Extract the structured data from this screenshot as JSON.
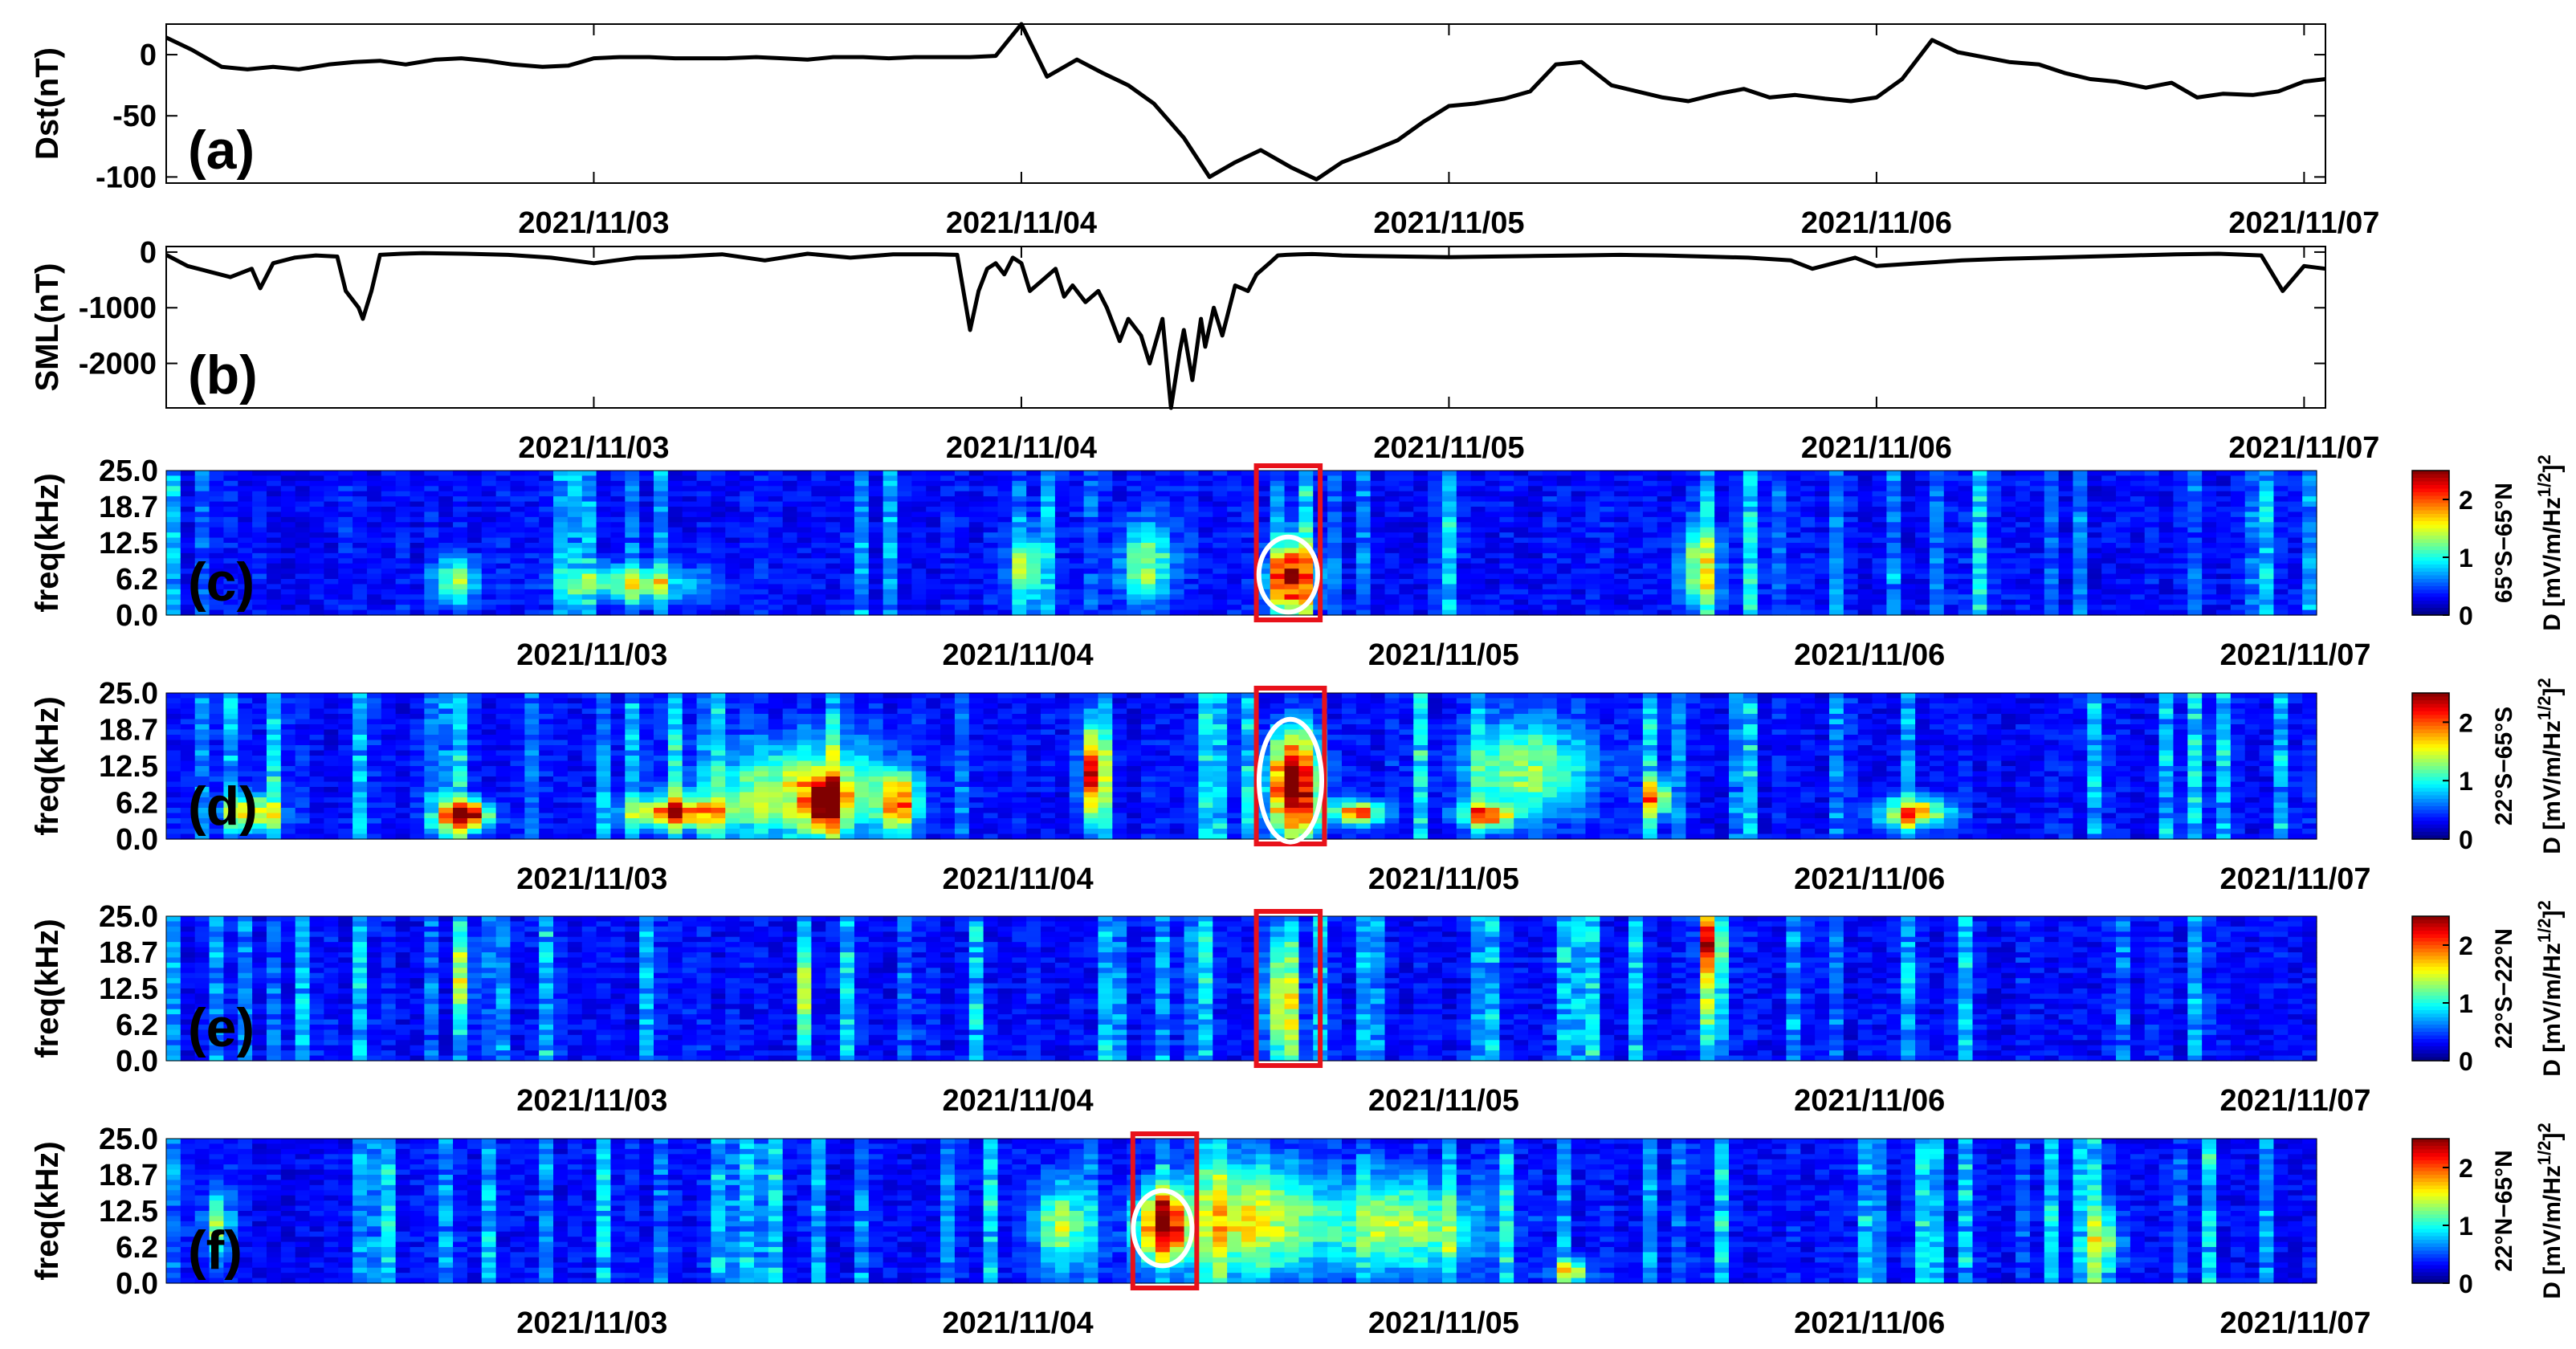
{
  "chart_data": [
    {
      "id": "a",
      "type": "line",
      "panel_label": "(a)",
      "ylabel": "Dst(nT)",
      "ylim": [
        -105,
        25
      ],
      "yticks": [
        0,
        -50,
        -100
      ],
      "ytick_labels": [
        "0",
        "-50",
        "-100"
      ],
      "xlim_days": [
        0,
        5.05
      ],
      "xticks_days": [
        1,
        2,
        3,
        4,
        5
      ],
      "xtick_labels": [
        "2021/11/03",
        "2021/11/04",
        "2021/11/05",
        "2021/11/06",
        "2021/11/07"
      ],
      "x_days": [
        0.0,
        0.06,
        0.13,
        0.19,
        0.25,
        0.31,
        0.38,
        0.44,
        0.5,
        0.56,
        0.63,
        0.69,
        0.75,
        0.81,
        0.88,
        0.94,
        1.0,
        1.06,
        1.13,
        1.19,
        1.25,
        1.31,
        1.38,
        1.44,
        1.5,
        1.56,
        1.63,
        1.69,
        1.75,
        1.81,
        1.88,
        1.94,
        2.0,
        2.06,
        2.13,
        2.19,
        2.25,
        2.31,
        2.38,
        2.44,
        2.5,
        2.56,
        2.63,
        2.69,
        2.75,
        2.81,
        2.88,
        2.94,
        3.0,
        3.06,
        3.13,
        3.19,
        3.25,
        3.31,
        3.38,
        3.44,
        3.5,
        3.56,
        3.63,
        3.69,
        3.75,
        3.81,
        3.88,
        3.94,
        4.0,
        4.06,
        4.13,
        4.19,
        4.25,
        4.31,
        4.38,
        4.44,
        4.5,
        4.56,
        4.63,
        4.69,
        4.75,
        4.81,
        4.88,
        4.94,
        5.0,
        5.05
      ],
      "y": [
        14,
        4,
        -10,
        -12,
        -10,
        -12,
        -8,
        -6,
        -5,
        -8,
        -4,
        -3,
        -5,
        -8,
        -10,
        -9,
        -3,
        -2,
        -2,
        -3,
        -3,
        -3,
        -2,
        -3,
        -4,
        -2,
        -2,
        -3,
        -2,
        -2,
        -2,
        -1,
        25,
        -18,
        -4,
        -15,
        -25,
        -40,
        -68,
        -100,
        -88,
        -78,
        -92,
        -102,
        -88,
        -80,
        -70,
        -55,
        -42,
        -40,
        -36,
        -30,
        -8,
        -6,
        -25,
        -30,
        -35,
        -38,
        -32,
        -28,
        -35,
        -33,
        -36,
        -38,
        -35,
        -20,
        12,
        2,
        -2,
        -6,
        -8,
        -15,
        -20,
        -22,
        -27,
        -23,
        -35,
        -32,
        -33,
        -30,
        -22,
        -20
      ]
    },
    {
      "id": "b",
      "type": "line",
      "panel_label": "(b)",
      "ylabel": "SML(nT)",
      "ylim": [
        -2800,
        100
      ],
      "yticks": [
        0,
        -1000,
        -2000
      ],
      "ytick_labels": [
        "0",
        "-1000",
        "-2000"
      ],
      "xlim_days": [
        0,
        5.05
      ],
      "xticks_days": [
        1,
        2,
        3,
        4,
        5
      ],
      "xtick_labels": [
        "2021/11/03",
        "2021/11/04",
        "2021/11/05",
        "2021/11/06",
        "2021/11/07"
      ],
      "x_days": [
        0.0,
        0.05,
        0.1,
        0.15,
        0.2,
        0.22,
        0.25,
        0.3,
        0.35,
        0.4,
        0.42,
        0.45,
        0.46,
        0.48,
        0.5,
        0.55,
        0.6,
        0.7,
        0.8,
        0.9,
        1.0,
        1.1,
        1.2,
        1.3,
        1.4,
        1.5,
        1.6,
        1.7,
        1.8,
        1.85,
        1.88,
        1.9,
        1.92,
        1.94,
        1.96,
        1.98,
        2.0,
        2.02,
        2.05,
        2.08,
        2.1,
        2.12,
        2.15,
        2.18,
        2.2,
        2.23,
        2.25,
        2.28,
        2.3,
        2.33,
        2.35,
        2.37,
        2.38,
        2.4,
        2.42,
        2.43,
        2.45,
        2.47,
        2.5,
        2.53,
        2.55,
        2.58,
        2.6,
        2.62,
        2.65,
        2.68,
        2.7,
        2.75,
        2.8,
        2.9,
        3.0,
        3.1,
        3.2,
        3.3,
        3.4,
        3.5,
        3.6,
        3.7,
        3.8,
        3.85,
        3.9,
        3.95,
        4.0,
        4.1,
        4.2,
        4.3,
        4.4,
        4.5,
        4.6,
        4.7,
        4.8,
        4.9,
        4.95,
        5.0,
        5.05
      ],
      "y": [
        -50,
        -250,
        -350,
        -450,
        -300,
        -650,
        -200,
        -100,
        -60,
        -80,
        -700,
        -1000,
        -1200,
        -700,
        -50,
        -30,
        -20,
        -30,
        -50,
        -100,
        -200,
        -100,
        -80,
        -40,
        -150,
        -30,
        -100,
        -40,
        -40,
        -50,
        -1400,
        -700,
        -300,
        -200,
        -400,
        -100,
        -200,
        -700,
        -500,
        -300,
        -800,
        -600,
        -900,
        -700,
        -1000,
        -1600,
        -1200,
        -1500,
        -2000,
        -1200,
        -2800,
        -1800,
        -1400,
        -2300,
        -1200,
        -1700,
        -1000,
        -1500,
        -600,
        -700,
        -400,
        -200,
        -60,
        -50,
        -40,
        -35,
        -40,
        -60,
        -70,
        -80,
        -90,
        -80,
        -70,
        -60,
        -50,
        -60,
        -80,
        -100,
        -150,
        -300,
        -200,
        -100,
        -250,
        -200,
        -150,
        -120,
        -100,
        -80,
        -60,
        -40,
        -30,
        -60,
        -700,
        -250,
        -300
      ]
    },
    {
      "id": "c",
      "type": "heatmap",
      "panel_label": "(c)",
      "ylabel": "freq(kHz)",
      "ytick_labels": [
        "25.0",
        "18.7",
        "12.5",
        "6.2",
        "0.0"
      ],
      "xtick_labels": [
        "2021/11/03",
        "2021/11/04",
        "2021/11/05",
        "2021/11/06",
        "2021/11/07"
      ],
      "colorbar_label": "65°S−65°N",
      "colorbar_unit": "D [mV/m/Hz",
      "colorbar_ticks": [
        "2",
        "1",
        "0"
      ],
      "clim": [
        0,
        2.5
      ],
      "highlight_days": [
        2.56,
        2.71
      ],
      "ellipse_center": [
        2.635,
        7
      ],
      "hotspots": [
        {
          "x": 2.64,
          "f": 6.5,
          "w": 0.05,
          "h": 6,
          "v": 2.2
        },
        {
          "x": 0.68,
          "f": 6,
          "w": 0.05,
          "h": 4,
          "v": 1.1
        },
        {
          "x": 1.1,
          "f": 5.5,
          "w": 0.15,
          "h": 3,
          "v": 1.0
        },
        {
          "x": 2.3,
          "f": 9,
          "w": 0.06,
          "h": 7,
          "v": 1.1
        },
        {
          "x": 3.6,
          "f": 8,
          "w": 0.05,
          "h": 7,
          "v": 1.1
        },
        {
          "x": 2.02,
          "f": 8,
          "w": 0.04,
          "h": 6,
          "v": 1.0
        }
      ]
    },
    {
      "id": "d",
      "type": "heatmap",
      "panel_label": "(d)",
      "ylabel": "freq(kHz)",
      "ytick_labels": [
        "25.0",
        "18.7",
        "12.5",
        "6.2",
        "0.0"
      ],
      "xtick_labels": [
        "2021/11/03",
        "2021/11/04",
        "2021/11/05",
        "2021/11/06",
        "2021/11/07"
      ],
      "colorbar_label": "22°S−65°S",
      "colorbar_unit": "D [mV/m/Hz",
      "colorbar_ticks": [
        "2",
        "1",
        "0"
      ],
      "clim": [
        0,
        2.5
      ],
      "highlight_days": [
        2.56,
        2.72
      ],
      "ellipse_center": [
        2.64,
        10
      ],
      "hotspots": [
        {
          "x": 2.65,
          "f": 9,
          "w": 0.06,
          "h": 9,
          "v": 2.6
        },
        {
          "x": 0.7,
          "f": 4,
          "w": 0.06,
          "h": 2.5,
          "v": 2.3
        },
        {
          "x": 1.2,
          "f": 4.5,
          "w": 0.12,
          "h": 2.5,
          "v": 1.6
        },
        {
          "x": 0.2,
          "f": 4.5,
          "w": 0.06,
          "h": 3,
          "v": 1.4
        },
        {
          "x": 1.5,
          "f": 8,
          "w": 0.2,
          "h": 8,
          "v": 1.3
        },
        {
          "x": 2.18,
          "f": 11,
          "w": 0.03,
          "h": 8,
          "v": 2.1
        },
        {
          "x": 1.72,
          "f": 6,
          "w": 0.04,
          "h": 5,
          "v": 1.6
        },
        {
          "x": 1.55,
          "f": 6,
          "w": 0.04,
          "h": 4,
          "v": 1.8
        },
        {
          "x": 2.8,
          "f": 4.5,
          "w": 0.06,
          "h": 2,
          "v": 1.7
        },
        {
          "x": 3.1,
          "f": 4,
          "w": 0.06,
          "h": 2,
          "v": 1.6
        },
        {
          "x": 4.1,
          "f": 4.5,
          "w": 0.08,
          "h": 2.5,
          "v": 1.6
        },
        {
          "x": 3.5,
          "f": 7,
          "w": 0.03,
          "h": 3,
          "v": 1.5
        },
        {
          "x": 3.2,
          "f": 12,
          "w": 0.15,
          "h": 8,
          "v": 1.0
        }
      ]
    },
    {
      "id": "e",
      "type": "heatmap",
      "panel_label": "(e)",
      "ylabel": "freq(kHz)",
      "ytick_labels": [
        "25.0",
        "18.7",
        "12.5",
        "6.2",
        "0.0"
      ],
      "xtick_labels": [
        "2021/11/03",
        "2021/11/04",
        "2021/11/05",
        "2021/11/06",
        "2021/11/07"
      ],
      "colorbar_label": "22°S−22°N",
      "colorbar_unit": "D [mV/m/Hz",
      "colorbar_ticks": [
        "2",
        "1",
        "0"
      ],
      "clim": [
        0,
        2.5
      ],
      "highlight_days": [
        2.56,
        2.71
      ],
      "hotspots": [
        {
          "x": 3.63,
          "f": 21,
          "w": 0.02,
          "h": 5,
          "v": 2.1
        },
        {
          "x": 3.63,
          "f": 12,
          "w": 0.025,
          "h": 12,
          "v": 1.3
        },
        {
          "x": 2.62,
          "f": 10,
          "w": 0.04,
          "h": 12,
          "v": 1.2
        },
        {
          "x": 0.7,
          "f": 15,
          "w": 0.02,
          "h": 8,
          "v": 1.0
        },
        {
          "x": 1.5,
          "f": 12,
          "w": 0.02,
          "h": 10,
          "v": 0.9
        }
      ]
    },
    {
      "id": "f",
      "type": "heatmap",
      "panel_label": "(f)",
      "ylabel": "freq(kHz)",
      "ytick_labels": [
        "25.0",
        "18.7",
        "12.5",
        "6.2",
        "0.0"
      ],
      "xtick_labels": [
        "2021/11/03",
        "2021/11/04",
        "2021/11/05",
        "2021/11/06",
        "2021/11/07"
      ],
      "colorbar_label": "22°N−65°N",
      "colorbar_unit": "D [mV/m/Hz",
      "colorbar_ticks": [
        "2",
        "1",
        "0"
      ],
      "clim": [
        0,
        2.5
      ],
      "highlight_days": [
        2.27,
        2.42
      ],
      "ellipse_center": [
        2.34,
        9.5
      ],
      "hotspots": [
        {
          "x": 2.34,
          "f": 10,
          "w": 0.06,
          "h": 6,
          "v": 2.1
        },
        {
          "x": 2.55,
          "f": 11,
          "w": 0.15,
          "h": 10,
          "v": 1.3
        },
        {
          "x": 2.9,
          "f": 10,
          "w": 0.18,
          "h": 8,
          "v": 1.1
        },
        {
          "x": 2.1,
          "f": 10,
          "w": 0.06,
          "h": 7,
          "v": 1.1
        },
        {
          "x": 3.3,
          "f": 2,
          "w": 0.04,
          "h": 2,
          "v": 1.4
        },
        {
          "x": 4.55,
          "f": 7,
          "w": 0.04,
          "h": 6,
          "v": 1.0
        },
        {
          "x": 0.12,
          "f": 10,
          "w": 0.03,
          "h": 6,
          "v": 1.0
        }
      ]
    }
  ]
}
